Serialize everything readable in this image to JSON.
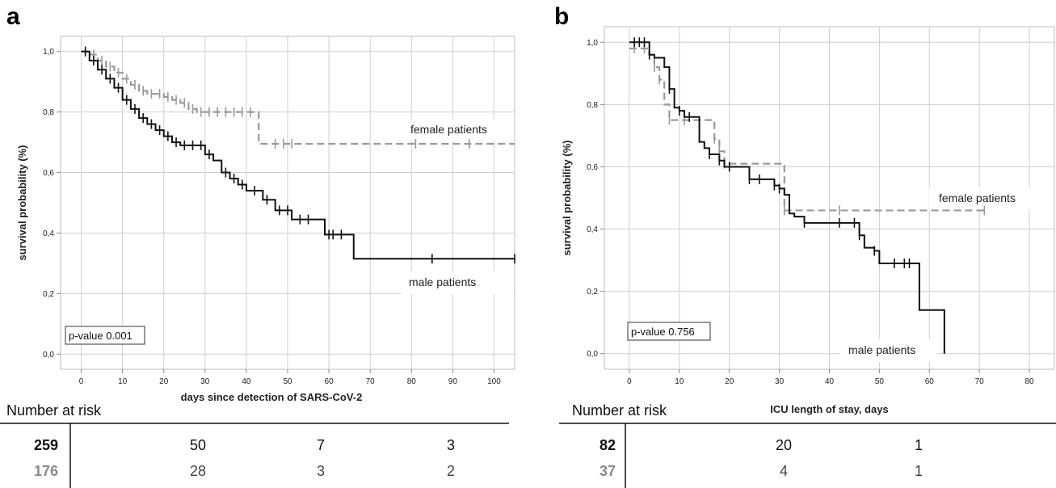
{
  "chart_data": [
    {
      "type": "line",
      "panel": "a",
      "xlabel": "days since detection of SARS-CoV-2",
      "ylabel": "survival probability (%)",
      "xlim": [
        -5,
        105
      ],
      "ylim": [
        -0.05,
        1.05
      ],
      "xticks": [
        "0",
        "10",
        "20",
        "30",
        "40",
        "50",
        "60",
        "70",
        "80",
        "90",
        "100"
      ],
      "yticks": [
        "0,0",
        "0,2",
        "0,4",
        "0,6",
        "0,8",
        "1,0"
      ],
      "grid": true,
      "p_value_label": "p-value 0.001",
      "series": [
        {
          "name": "female patients",
          "color": "#9a9a9a",
          "style": "dashed",
          "x": [
            0,
            2,
            4,
            6,
            8,
            10,
            12,
            14,
            16,
            18,
            20,
            22,
            24,
            26,
            28,
            30,
            35,
            40,
            43,
            50,
            60,
            70,
            80,
            90,
            100,
            105
          ],
          "y": [
            1.0,
            0.99,
            0.97,
            0.95,
            0.93,
            0.91,
            0.89,
            0.87,
            0.86,
            0.86,
            0.85,
            0.84,
            0.83,
            0.81,
            0.8,
            0.8,
            0.8,
            0.8,
            0.695,
            0.695,
            0.695,
            0.695,
            0.695,
            0.695,
            0.695,
            0.695
          ],
          "censor_x": [
            1,
            3,
            5,
            7,
            9,
            11,
            13,
            15,
            17,
            19,
            21,
            23,
            25,
            27,
            29,
            31,
            33,
            35,
            37,
            39,
            41,
            47,
            49,
            51,
            81,
            94
          ],
          "annotation": "female patients"
        },
        {
          "name": "male patients",
          "color": "#111111",
          "style": "solid",
          "x": [
            0,
            2,
            4,
            6,
            8,
            10,
            12,
            14,
            16,
            18,
            20,
            22,
            24,
            26,
            28,
            30,
            32,
            34,
            36,
            38,
            40,
            44,
            47,
            51,
            56,
            59,
            63,
            66,
            80,
            100,
            105
          ],
          "y": [
            1.0,
            0.97,
            0.94,
            0.91,
            0.88,
            0.84,
            0.81,
            0.78,
            0.76,
            0.74,
            0.72,
            0.7,
            0.69,
            0.69,
            0.69,
            0.66,
            0.64,
            0.6,
            0.58,
            0.56,
            0.54,
            0.51,
            0.475,
            0.445,
            0.445,
            0.395,
            0.395,
            0.315,
            0.315,
            0.315,
            0.315
          ],
          "censor_x": [
            1,
            3,
            5,
            7,
            9,
            11,
            13,
            15,
            17,
            19,
            21,
            23,
            25,
            27,
            29,
            31,
            35,
            37,
            39,
            42,
            45,
            48,
            50,
            53,
            55,
            60,
            61,
            63,
            85,
            105
          ],
          "annotation": "male patients"
        }
      ],
      "risk_table": {
        "title": "Number at risk",
        "rows": [
          {
            "label": "259",
            "values": [
              "50",
              "7",
              "3"
            ]
          },
          {
            "label": "176",
            "values": [
              "28",
              "3",
              "2"
            ]
          }
        ]
      }
    },
    {
      "type": "line",
      "panel": "b",
      "xlabel": "ICU length of stay, days",
      "ylabel": "survival probability (%)",
      "xlim": [
        -5,
        85
      ],
      "ylim": [
        -0.05,
        1.05
      ],
      "xticks": [
        "0",
        "10",
        "20",
        "30",
        "40",
        "50",
        "60",
        "70",
        "80"
      ],
      "yticks": [
        "0,0",
        "0,2",
        "0,4",
        "0,6",
        "0,8",
        "1,0"
      ],
      "grid": true,
      "p_value_label": "p-value 0.756",
      "series": [
        {
          "name": "female patients",
          "color": "#9a9a9a",
          "style": "dashed",
          "x": [
            0,
            4,
            5,
            6,
            7,
            8,
            12,
            13,
            17,
            18,
            19,
            31,
            71
          ],
          "y": [
            0.98,
            0.96,
            0.92,
            0.88,
            0.8,
            0.75,
            0.75,
            0.75,
            0.69,
            0.65,
            0.61,
            0.46,
            0.46
          ],
          "censor_x": [
            1,
            3,
            5,
            6,
            8,
            11,
            17,
            18,
            19,
            31,
            42,
            71
          ],
          "annotation": "female patients"
        },
        {
          "name": "male patients",
          "color": "#111111",
          "style": "solid",
          "x": [
            0,
            4,
            5,
            7,
            8,
            9,
            10,
            11,
            14,
            15,
            16,
            18,
            19,
            24,
            29,
            30,
            31,
            32,
            33,
            35,
            45,
            46,
            47,
            49,
            50,
            55,
            58,
            63
          ],
          "y": [
            1.0,
            0.96,
            0.95,
            0.92,
            0.85,
            0.79,
            0.78,
            0.76,
            0.68,
            0.66,
            0.64,
            0.62,
            0.6,
            0.56,
            0.54,
            0.53,
            0.51,
            0.45,
            0.44,
            0.42,
            0.42,
            0.38,
            0.34,
            0.33,
            0.29,
            0.29,
            0.14,
            0.0
          ],
          "censor_x": [
            1,
            2,
            3,
            4,
            8,
            10,
            12,
            16,
            18,
            20,
            24,
            26,
            29,
            30,
            35,
            42,
            45,
            46,
            49,
            53,
            55,
            56
          ],
          "annotation": "male patients"
        }
      ],
      "risk_table": {
        "title": "Number at risk",
        "rows": [
          {
            "label": "82",
            "values": [
              "20",
              "1"
            ]
          },
          {
            "label": "37",
            "values": [
              "4",
              "1"
            ]
          }
        ]
      }
    }
  ],
  "panels": {
    "a": {
      "letter": "a"
    },
    "b": {
      "letter": "b"
    }
  }
}
